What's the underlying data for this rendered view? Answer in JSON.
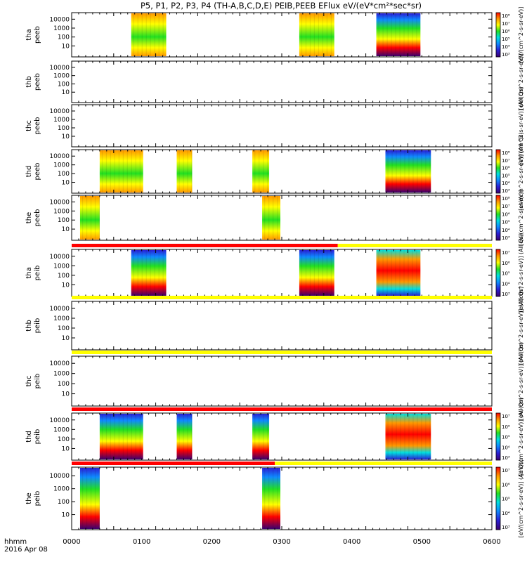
{
  "title": "P5, P1, P2, P3, P4 (TH-A,B,C,D,E) PEIB,PEEB EFlux eV/(eV*cm²*sec*sr)",
  "time_axis": {
    "label_line1": "hhmm",
    "label_line2": "2016 Apr 08",
    "ticks": [
      "0000",
      "0100",
      "0200",
      "0300",
      "0400",
      "0500",
      "0600"
    ]
  },
  "colors": {
    "bar_red": "#ff0000",
    "bar_yellow": "#ffff00",
    "colormap": [
      "#3b0070",
      "#2a1fd6",
      "#0f8bff",
      "#00e0e0",
      "#22e022",
      "#ffff00",
      "#ff9900",
      "#ff0000"
    ]
  },
  "chart_data": {
    "type": "heatmap",
    "x_unit": "hhmm",
    "x_range": [
      "0000",
      "0600"
    ],
    "y_scale": "log",
    "y_ticks": [
      "10",
      "100",
      "1000",
      "10000"
    ],
    "panels": [
      {
        "label1": "tha",
        "label2": "peeb",
        "colorbar": true,
        "colorbar_ticks": [
          "10⁸",
          "10⁷",
          "10⁶",
          "10⁵",
          "10⁴",
          "10³"
        ],
        "colorbar_label": "[eV/(cm^2-s-sr-eV)]",
        "segments": [
          {
            "start": 85,
            "end": 135,
            "style": "warm"
          },
          {
            "start": 325,
            "end": 375,
            "style": "warm"
          },
          {
            "start": 435,
            "end": 498,
            "style": "cool"
          }
        ]
      },
      {
        "label1": "thb",
        "label2": "peeb",
        "colorbar": false,
        "colorbar_ticks": [],
        "colorbar_label": "[eV/(cm^2-s-sr-eV)]",
        "segments": []
      },
      {
        "label1": "thc",
        "label2": "peeb",
        "colorbar": false,
        "colorbar_ticks": [],
        "colorbar_label": "[eV/(cm^2-s-sr-eV)] (All Qs)",
        "segments": []
      },
      {
        "label1": "thd",
        "label2": "peeb",
        "colorbar": true,
        "colorbar_ticks": [
          "10⁸",
          "10⁷",
          "10⁶",
          "10⁵",
          "10⁴",
          "10³"
        ],
        "colorbar_label": "[eV/(cm^2-s-sr-eV)] (All Qs)",
        "segments": [
          {
            "start": 40,
            "end": 102,
            "style": "warm"
          },
          {
            "start": 150,
            "end": 172,
            "style": "warm"
          },
          {
            "start": 258,
            "end": 282,
            "style": "warm"
          },
          {
            "start": 448,
            "end": 513,
            "style": "cool"
          }
        ]
      },
      {
        "label1": "the",
        "label2": "peeb",
        "colorbar": true,
        "colorbar_ticks": [
          "10⁸",
          "10⁷",
          "10⁶",
          "10⁵",
          "10⁴",
          "10³"
        ],
        "colorbar_label": "[eV/(cm^2-s-sr-eV)]",
        "segments": [
          {
            "start": 12,
            "end": 40,
            "style": "warm"
          },
          {
            "start": 272,
            "end": 298,
            "style": "warm"
          }
        ]
      },
      {
        "label1": "tha",
        "label2": "peib",
        "colorbar": true,
        "colorbar_ticks": [
          "10⁷",
          "10⁶",
          "10⁵",
          "10⁴",
          "10³"
        ],
        "colorbar_label": "[eV/(cm^2-s-sr-eV)] (All Qs)",
        "segments": [
          {
            "start": 85,
            "end": 135,
            "style": "cool"
          },
          {
            "start": 325,
            "end": 375,
            "style": "cool"
          },
          {
            "start": 435,
            "end": 498,
            "style": "hot"
          }
        ]
      },
      {
        "label1": "thb",
        "label2": "peib",
        "colorbar": false,
        "colorbar_ticks": [],
        "colorbar_label": "[eV/(cm^2-s-sr-eV)] (All Qs)",
        "segments": []
      },
      {
        "label1": "thc",
        "label2": "peib",
        "colorbar": false,
        "colorbar_ticks": [],
        "colorbar_label": "[eV/(cm^2-s-sr-eV)] (All Qs)",
        "segments": []
      },
      {
        "label1": "thd",
        "label2": "peib",
        "colorbar": true,
        "colorbar_ticks": [
          "10⁷",
          "10⁶",
          "10⁵",
          "10⁴",
          "10³"
        ],
        "colorbar_label": "[eV/(cm^2-s-sr-eV)] (All Qs)",
        "segments": [
          {
            "start": 40,
            "end": 102,
            "style": "cool"
          },
          {
            "start": 150,
            "end": 172,
            "style": "cool"
          },
          {
            "start": 258,
            "end": 282,
            "style": "cool"
          },
          {
            "start": 448,
            "end": 513,
            "style": "hot"
          }
        ]
      },
      {
        "label1": "the",
        "label2": "peib",
        "colorbar": true,
        "colorbar_ticks": [
          "10⁷",
          "10⁶",
          "10⁵",
          "10⁴",
          "10³"
        ],
        "colorbar_label": "[eV/(cm^2-s-sr-eV)] (All Qs)",
        "segments": [
          {
            "start": 12,
            "end": 40,
            "style": "cool"
          },
          {
            "start": 272,
            "end": 298,
            "style": "cool"
          }
        ]
      }
    ],
    "bars": [
      {
        "after_panel": 5,
        "red_until": 380,
        "yellow_until": 600
      },
      {
        "after_panel": 6,
        "red_until": 0,
        "yellow_until": 600
      },
      {
        "after_panel": 7,
        "red_until": 0,
        "yellow_until": 600
      },
      {
        "after_panel": 8,
        "red_until": 600,
        "yellow_until": 600
      },
      {
        "after_panel": 9,
        "red_until": 290,
        "yellow_until": 600
      }
    ]
  }
}
